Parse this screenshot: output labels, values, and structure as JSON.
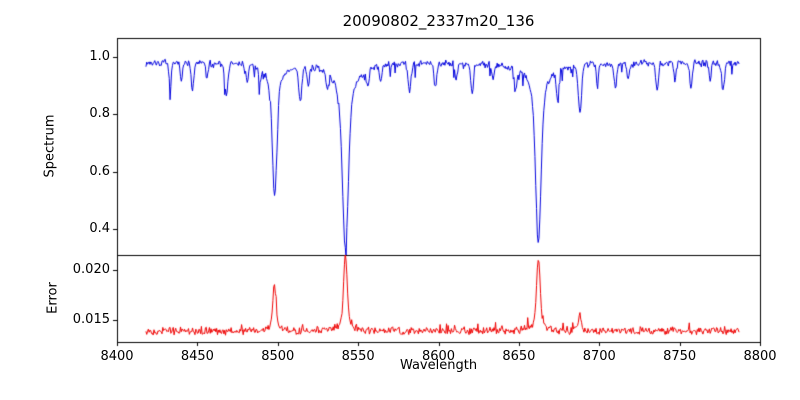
{
  "chart_data": [
    {
      "type": "line",
      "title": "20090802_2337m20_136",
      "ylabel": "Spectrum",
      "xlim": [
        8400,
        8800
      ],
      "ylim": [
        0.31,
        1.065
      ],
      "yticks": [
        0.4,
        0.6,
        0.8,
        1.0
      ],
      "ytick_labels": [
        "0.4",
        "0.6",
        "0.8",
        "1.0"
      ],
      "grid": false,
      "legend": false,
      "line_color": "#0000dd",
      "data_x_start": 8418,
      "data_x_end": 8787,
      "data_x_step": 0.5,
      "continuum": 0.978,
      "noise_amplitude": 0.014,
      "noise_seed": 7,
      "downward_spike_probability": 0.07,
      "downward_spike_max_depth": 0.05,
      "strong_absorption_lines": [
        {
          "center": 8498.0,
          "depth": 0.46,
          "width": 1.3
        },
        {
          "center": 8542.1,
          "depth": 0.65,
          "width": 1.7
        },
        {
          "center": 8662.1,
          "depth": 0.62,
          "width": 1.6
        }
      ],
      "weak_absorption_lines": [
        {
          "center": 8433,
          "depth": 0.07,
          "width": 0.8
        },
        {
          "center": 8440,
          "depth": 0.05,
          "width": 0.7
        },
        {
          "center": 8447,
          "depth": 0.1,
          "width": 0.8
        },
        {
          "center": 8456,
          "depth": 0.05,
          "width": 0.7
        },
        {
          "center": 8468,
          "depth": 0.11,
          "width": 0.9
        },
        {
          "center": 8481,
          "depth": 0.06,
          "width": 0.7
        },
        {
          "center": 8489,
          "depth": 0.05,
          "width": 0.6
        },
        {
          "center": 8514,
          "depth": 0.12,
          "width": 0.9
        },
        {
          "center": 8519,
          "depth": 0.07,
          "width": 0.7
        },
        {
          "center": 8531,
          "depth": 0.06,
          "width": 0.7
        },
        {
          "center": 8556,
          "depth": 0.06,
          "width": 0.8
        },
        {
          "center": 8564,
          "depth": 0.05,
          "width": 0.7
        },
        {
          "center": 8582,
          "depth": 0.1,
          "width": 0.9
        },
        {
          "center": 8598,
          "depth": 0.09,
          "width": 0.8
        },
        {
          "center": 8611,
          "depth": 0.06,
          "width": 0.7
        },
        {
          "center": 8621,
          "depth": 0.1,
          "width": 0.8
        },
        {
          "center": 8634,
          "depth": 0.05,
          "width": 0.7
        },
        {
          "center": 8648,
          "depth": 0.08,
          "width": 0.8
        },
        {
          "center": 8674,
          "depth": 0.09,
          "width": 0.8
        },
        {
          "center": 8688,
          "depth": 0.17,
          "width": 1.0
        },
        {
          "center": 8699,
          "depth": 0.05,
          "width": 0.7
        },
        {
          "center": 8710,
          "depth": 0.09,
          "width": 0.8
        },
        {
          "center": 8718,
          "depth": 0.06,
          "width": 0.7
        },
        {
          "center": 8736,
          "depth": 0.1,
          "width": 0.8
        },
        {
          "center": 8747,
          "depth": 0.06,
          "width": 0.7
        },
        {
          "center": 8757,
          "depth": 0.08,
          "width": 0.8
        },
        {
          "center": 8769,
          "depth": 0.06,
          "width": 0.7
        },
        {
          "center": 8777,
          "depth": 0.1,
          "width": 0.8
        }
      ]
    },
    {
      "type": "line",
      "ylabel": "Error",
      "xlabel": "Wavelength",
      "xlim": [
        8400,
        8800
      ],
      "xticks": [
        8400,
        8450,
        8500,
        8550,
        8600,
        8650,
        8700,
        8750,
        8800
      ],
      "xtick_labels": [
        "8400",
        "8450",
        "8500",
        "8550",
        "8600",
        "8650",
        "8700",
        "8750",
        "8800"
      ],
      "ylim": [
        0.0128,
        0.0215
      ],
      "yticks": [
        0.015,
        0.02
      ],
      "ytick_labels": [
        "0.015",
        "0.020"
      ],
      "grid": false,
      "legend": false,
      "line_color": "#ee0000",
      "data_x_start": 8418,
      "data_x_end": 8787,
      "data_x_step": 0.5,
      "baseline": 0.0139,
      "noise_amplitude": 0.00045,
      "noise_seed": 13,
      "upward_spike_probability": 0.05,
      "upward_spike_max": 0.0008,
      "error_peaks": [
        {
          "center": 8498.0,
          "amplitude": 0.0046,
          "width": 1.0
        },
        {
          "center": 8542.1,
          "amplitude": 0.0072,
          "width": 1.1
        },
        {
          "center": 8662.1,
          "amplitude": 0.0071,
          "width": 1.1
        },
        {
          "center": 8688.0,
          "amplitude": 0.0016,
          "width": 0.8
        }
      ]
    }
  ]
}
